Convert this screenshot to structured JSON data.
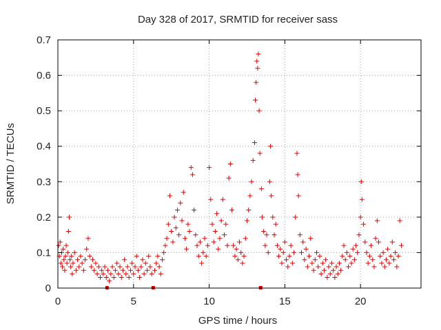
{
  "chart_data": {
    "type": "scatter",
    "title": "Day 328 of 2017, SRMTID for receiver sass",
    "xlabel": "GPS time / hours",
    "ylabel": "SRMTID / TECUs",
    "xlim": [
      0,
      24
    ],
    "ylim": [
      0,
      0.7
    ],
    "x_ticks": [
      0,
      5,
      10,
      15,
      20
    ],
    "x_tick_labels": [
      "0",
      "5",
      "10",
      "15",
      "20"
    ],
    "y_ticks": [
      0,
      0.1,
      0.2,
      0.3,
      0.4,
      0.5,
      0.6,
      0.7
    ],
    "y_tick_labels": [
      "0",
      "0.1",
      "0.2",
      "0.3",
      "0.4",
      "0.5",
      "0.6",
      "0.7"
    ],
    "grid": true,
    "marker": "+",
    "color": "#e00000",
    "data_gap_markers_x": [
      3.25,
      6.3,
      13.4
    ],
    "series": [
      {
        "name": "SRMTID",
        "points": [
          [
            0.05,
            0.12
          ],
          [
            0.1,
            0.09
          ],
          [
            0.15,
            0.13
          ],
          [
            0.2,
            0.07
          ],
          [
            0.25,
            0.1
          ],
          [
            0.3,
            0.06
          ],
          [
            0.35,
            0.11
          ],
          [
            0.4,
            0.08
          ],
          [
            0.45,
            0.05
          ],
          [
            0.5,
            0.09
          ],
          [
            0.55,
            0.12
          ],
          [
            0.6,
            0.07
          ],
          [
            0.65,
            0.1
          ],
          [
            0.7,
            0.16
          ],
          [
            0.75,
            0.2
          ],
          [
            0.8,
            0.08
          ],
          [
            0.85,
            0.06
          ],
          [
            0.9,
            0.09
          ],
          [
            0.95,
            0.04
          ],
          [
            1.0,
            0.07
          ],
          [
            1.1,
            0.1
          ],
          [
            1.2,
            0.05
          ],
          [
            1.3,
            0.08
          ],
          [
            1.4,
            0.06
          ],
          [
            1.5,
            0.09
          ],
          [
            1.6,
            0.07
          ],
          [
            1.7,
            0.05
          ],
          [
            1.8,
            0.08
          ],
          [
            1.9,
            0.11
          ],
          [
            2.0,
            0.14
          ],
          [
            2.1,
            0.09
          ],
          [
            2.2,
            0.06
          ],
          [
            2.3,
            0.08
          ],
          [
            2.4,
            0.05
          ],
          [
            2.5,
            0.07
          ],
          [
            2.6,
            0.04
          ],
          [
            2.7,
            0.06
          ],
          [
            2.8,
            0.03
          ],
          [
            2.9,
            0.05
          ],
          [
            3.0,
            0.04
          ],
          [
            3.1,
            0.06
          ],
          [
            3.2,
            0.03
          ],
          [
            3.3,
            0.05
          ],
          [
            3.4,
            0.02
          ],
          [
            3.5,
            0.04
          ],
          [
            3.6,
            0.06
          ],
          [
            3.7,
            0.03
          ],
          [
            3.8,
            0.05
          ],
          [
            3.9,
            0.07
          ],
          [
            4.0,
            0.04
          ],
          [
            4.1,
            0.06
          ],
          [
            4.2,
            0.03
          ],
          [
            4.3,
            0.05
          ],
          [
            4.4,
            0.08
          ],
          [
            4.5,
            0.04
          ],
          [
            4.6,
            0.06
          ],
          [
            4.7,
            0.03
          ],
          [
            4.8,
            0.05
          ],
          [
            4.9,
            0.07
          ],
          [
            5.0,
            0.04
          ],
          [
            5.1,
            0.06
          ],
          [
            5.2,
            0.09
          ],
          [
            5.3,
            0.05
          ],
          [
            5.4,
            0.03
          ],
          [
            5.5,
            0.06
          ],
          [
            5.6,
            0.08
          ],
          [
            5.7,
            0.04
          ],
          [
            5.8,
            0.07
          ],
          [
            5.9,
            0.05
          ],
          [
            6.0,
            0.09
          ],
          [
            6.1,
            0.06
          ],
          [
            6.2,
            0.04
          ],
          [
            6.4,
            0.05
          ],
          [
            6.5,
            0.07
          ],
          [
            6.6,
            0.09
          ],
          [
            6.7,
            0.06
          ],
          [
            6.8,
            0.04
          ],
          [
            6.9,
            0.08
          ],
          [
            7.0,
            0.1
          ],
          [
            7.1,
            0.12
          ],
          [
            7.2,
            0.14
          ],
          [
            7.3,
            0.18
          ],
          [
            7.4,
            0.26
          ],
          [
            7.5,
            0.16
          ],
          [
            7.6,
            0.13
          ],
          [
            7.7,
            0.2
          ],
          [
            7.8,
            0.17
          ],
          [
            7.9,
            0.22
          ],
          [
            8.0,
            0.15
          ],
          [
            8.1,
            0.24
          ],
          [
            8.2,
            0.19
          ],
          [
            8.3,
            0.27
          ],
          [
            8.4,
            0.14
          ],
          [
            8.5,
            0.11
          ],
          [
            8.6,
            0.18
          ],
          [
            8.7,
            0.16
          ],
          [
            8.8,
            0.34
          ],
          [
            8.9,
            0.32
          ],
          [
            9.0,
            0.22
          ],
          [
            9.1,
            0.15
          ],
          [
            9.2,
            0.12
          ],
          [
            9.3,
            0.09
          ],
          [
            9.4,
            0.13
          ],
          [
            9.5,
            0.07
          ],
          [
            9.6,
            0.1
          ],
          [
            9.7,
            0.14
          ],
          [
            9.8,
            0.09
          ],
          [
            9.9,
            0.12
          ],
          [
            10.0,
            0.34
          ],
          [
            10.1,
            0.25
          ],
          [
            10.2,
            0.18
          ],
          [
            10.3,
            0.13
          ],
          [
            10.4,
            0.16
          ],
          [
            10.5,
            0.21
          ],
          [
            10.6,
            0.11
          ],
          [
            10.7,
            0.14
          ],
          [
            10.8,
            0.19
          ],
          [
            10.9,
            0.25
          ],
          [
            11.0,
            0.15
          ],
          [
            11.1,
            0.18
          ],
          [
            11.2,
            0.12
          ],
          [
            11.3,
            0.31
          ],
          [
            11.4,
            0.35
          ],
          [
            11.5,
            0.22
          ],
          [
            11.6,
            0.12
          ],
          [
            11.7,
            0.09
          ],
          [
            11.8,
            0.11
          ],
          [
            11.9,
            0.08
          ],
          [
            12.0,
            0.13
          ],
          [
            12.1,
            0.1
          ],
          [
            12.2,
            0.07
          ],
          [
            12.3,
            0.09
          ],
          [
            12.4,
            0.14
          ],
          [
            12.5,
            0.19
          ],
          [
            12.6,
            0.22
          ],
          [
            12.7,
            0.26
          ],
          [
            12.8,
            0.3
          ],
          [
            12.9,
            0.36
          ],
          [
            13.0,
            0.41
          ],
          [
            13.05,
            0.53
          ],
          [
            13.1,
            0.58
          ],
          [
            13.15,
            0.64
          ],
          [
            13.2,
            0.62
          ],
          [
            13.25,
            0.66
          ],
          [
            13.3,
            0.5
          ],
          [
            13.35,
            0.38
          ],
          [
            13.45,
            0.28
          ],
          [
            13.5,
            0.2
          ],
          [
            13.6,
            0.16
          ],
          [
            13.7,
            0.12
          ],
          [
            13.8,
            0.15
          ],
          [
            13.9,
            0.1
          ],
          [
            14.0,
            0.3
          ],
          [
            14.05,
            0.4
          ],
          [
            14.1,
            0.26
          ],
          [
            14.2,
            0.2
          ],
          [
            14.3,
            0.15
          ],
          [
            14.4,
            0.18
          ],
          [
            14.5,
            0.12
          ],
          [
            14.6,
            0.09
          ],
          [
            14.7,
            0.11
          ],
          [
            14.8,
            0.07
          ],
          [
            14.9,
            0.1
          ],
          [
            15.0,
            0.13
          ],
          [
            15.1,
            0.08
          ],
          [
            15.2,
            0.06
          ],
          [
            15.3,
            0.09
          ],
          [
            15.4,
            0.12
          ],
          [
            15.5,
            0.07
          ],
          [
            15.6,
            0.1
          ],
          [
            15.7,
            0.2
          ],
          [
            15.8,
            0.38
          ],
          [
            15.85,
            0.32
          ],
          [
            15.9,
            0.26
          ],
          [
            16.0,
            0.15
          ],
          [
            16.1,
            0.1
          ],
          [
            16.2,
            0.13
          ],
          [
            16.3,
            0.08
          ],
          [
            16.4,
            0.11
          ],
          [
            16.5,
            0.06
          ],
          [
            16.6,
            0.09
          ],
          [
            16.7,
            0.14
          ],
          [
            16.8,
            0.07
          ],
          [
            16.9,
            0.05
          ],
          [
            17.0,
            0.08
          ],
          [
            17.1,
            0.1
          ],
          [
            17.2,
            0.06
          ],
          [
            17.3,
            0.09
          ],
          [
            17.4,
            0.04
          ],
          [
            17.5,
            0.07
          ],
          [
            17.6,
            0.05
          ],
          [
            17.7,
            0.08
          ],
          [
            17.8,
            0.03
          ],
          [
            17.9,
            0.06
          ],
          [
            18.0,
            0.04
          ],
          [
            18.1,
            0.07
          ],
          [
            18.2,
            0.05
          ],
          [
            18.3,
            0.03
          ],
          [
            18.4,
            0.06
          ],
          [
            18.5,
            0.04
          ],
          [
            18.6,
            0.07
          ],
          [
            18.7,
            0.05
          ],
          [
            18.8,
            0.09
          ],
          [
            18.9,
            0.12
          ],
          [
            19.0,
            0.08
          ],
          [
            19.1,
            0.1
          ],
          [
            19.2,
            0.06
          ],
          [
            19.3,
            0.09
          ],
          [
            19.4,
            0.07
          ],
          [
            19.5,
            0.11
          ],
          [
            19.6,
            0.08
          ],
          [
            19.7,
            0.12
          ],
          [
            19.8,
            0.1
          ],
          [
            19.9,
            0.15
          ],
          [
            20.0,
            0.2
          ],
          [
            20.05,
            0.3
          ],
          [
            20.1,
            0.25
          ],
          [
            20.2,
            0.18
          ],
          [
            20.3,
            0.13
          ],
          [
            20.4,
            0.1
          ],
          [
            20.5,
            0.07
          ],
          [
            20.6,
            0.09
          ],
          [
            20.7,
            0.12
          ],
          [
            20.8,
            0.08
          ],
          [
            20.9,
            0.06
          ],
          [
            21.0,
            0.14
          ],
          [
            21.1,
            0.19
          ],
          [
            21.2,
            0.13
          ],
          [
            21.3,
            0.09
          ],
          [
            21.4,
            0.07
          ],
          [
            21.5,
            0.1
          ],
          [
            21.6,
            0.06
          ],
          [
            21.7,
            0.08
          ],
          [
            21.8,
            0.11
          ],
          [
            21.9,
            0.07
          ],
          [
            22.0,
            0.09
          ],
          [
            22.1,
            0.13
          ],
          [
            22.2,
            0.08
          ],
          [
            22.3,
            0.1
          ],
          [
            22.4,
            0.06
          ],
          [
            22.5,
            0.09
          ],
          [
            22.6,
            0.19
          ],
          [
            22.7,
            0.12
          ]
        ]
      }
    ]
  }
}
